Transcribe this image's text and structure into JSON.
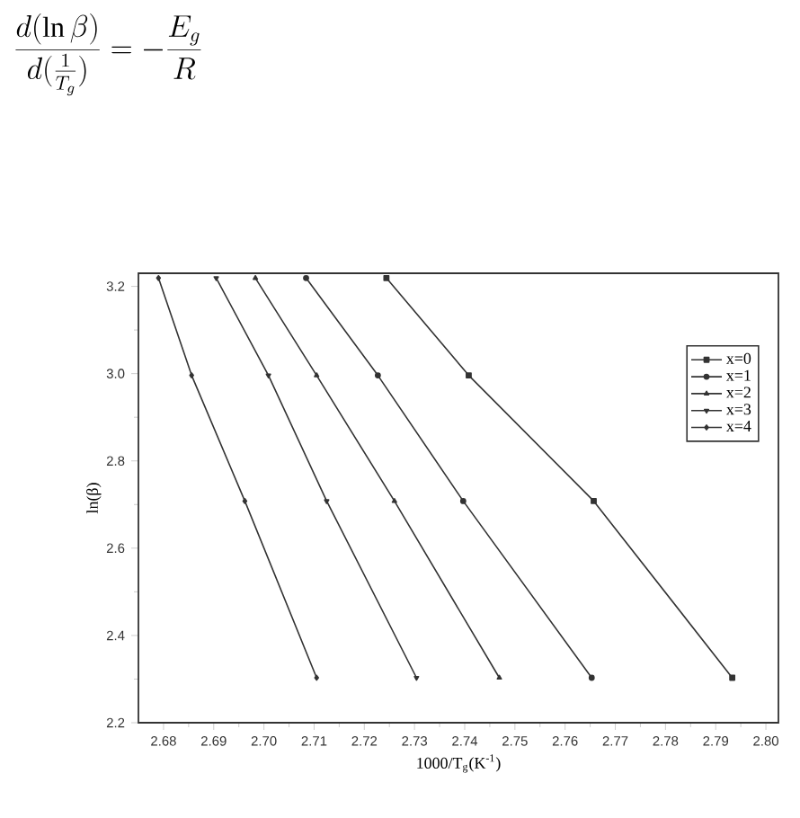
{
  "chart_data": {
    "type": "line",
    "xlabel": "1000/T$_{g}$(K$^{-1}$)",
    "ylabel": "ln(β)",
    "annotations": [
      "\\frac{d(\\ln\\beta)}{d(\\frac{1}{T_g})}=-\\frac{E_g}{R}"
    ],
    "xlim": [
      2.675,
      2.8025
    ],
    "ylim": [
      2.2,
      3.23
    ],
    "xticks": [
      2.68,
      2.69,
      {
        "value": 2.7,
        "label": "2.70"
      },
      2.71,
      2.72,
      2.73,
      2.74,
      2.75,
      2.76,
      2.77,
      2.78,
      2.79,
      {
        "value": 2.8,
        "label": "2.80"
      }
    ],
    "yticks": [
      2.2,
      2.4,
      2.6,
      2.8,
      {
        "value": 3.0,
        "label": "3.0"
      },
      3.2
    ],
    "legend": "top right",
    "grid": false,
    "line_style": "solid",
    "series": [
      {
        "name": "x=0",
        "color": "#333333",
        "marker": "square",
        "x": [
          2.7244,
          2.7408,
          2.7657,
          2.7933
        ],
        "values": [
          3.219,
          2.996,
          2.708,
          2.303
        ]
      },
      {
        "name": "x=1",
        "color": "#333333",
        "marker": "circle",
        "x": [
          2.7084,
          2.7227,
          2.7397,
          2.7653
        ],
        "values": [
          3.219,
          2.996,
          2.708,
          2.303
        ]
      },
      {
        "name": "x=2",
        "color": "#333333",
        "marker": "triangle",
        "x": [
          2.6983,
          2.7105,
          2.726,
          2.7469
        ],
        "values": [
          3.219,
          2.996,
          2.708,
          2.303
        ]
      },
      {
        "name": "x=3",
        "color": "#333333",
        "marker": "triangle down",
        "x": [
          2.6905,
          2.7009,
          2.7125,
          2.7304
        ],
        "values": [
          3.219,
          2.996,
          2.708,
          2.303
        ]
      },
      {
        "name": "x=4",
        "color": "#333333",
        "marker": "diamond",
        "x": [
          2.679,
          2.6856,
          2.6962,
          2.7105
        ],
        "values": [
          3.219,
          2.996,
          2.708,
          2.303
        ]
      }
    ]
  }
}
